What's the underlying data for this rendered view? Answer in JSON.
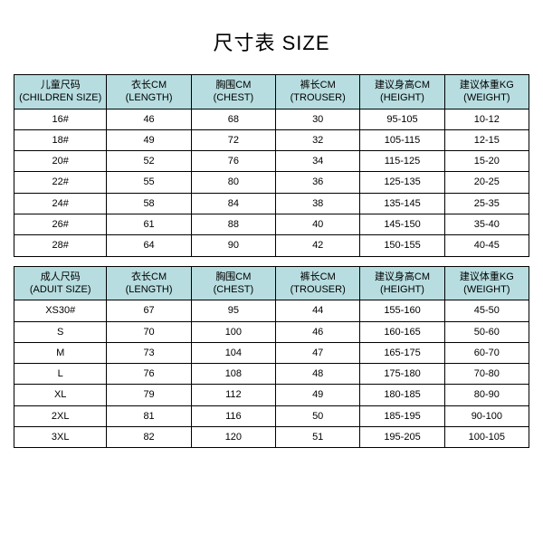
{
  "title": "尺寸表 SIZE",
  "children_table": {
    "headers": [
      "儿童尺码\n(CHILDREN SIZE)",
      "衣长CM\n(LENGTH)",
      "胸围CM\n(CHEST)",
      "裤长CM\n(TROUSER)",
      "建议身高CM\n(HEIGHT)",
      "建议体重KG\n(WEIGHT)"
    ],
    "rows": [
      [
        "16#",
        "46",
        "68",
        "30",
        "95-105",
        "10-12"
      ],
      [
        "18#",
        "49",
        "72",
        "32",
        "105-115",
        "12-15"
      ],
      [
        "20#",
        "52",
        "76",
        "34",
        "115-125",
        "15-20"
      ],
      [
        "22#",
        "55",
        "80",
        "36",
        "125-135",
        "20-25"
      ],
      [
        "24#",
        "58",
        "84",
        "38",
        "135-145",
        "25-35"
      ],
      [
        "26#",
        "61",
        "88",
        "40",
        "145-150",
        "35-40"
      ],
      [
        "28#",
        "64",
        "90",
        "42",
        "150-155",
        "40-45"
      ]
    ]
  },
  "adult_table": {
    "headers": [
      "成人尺码\n(ADUIT SIZE)",
      "衣长CM\n(LENGTH)",
      "胸围CM\n(CHEST)",
      "裤长CM\n(TROUSER)",
      "建议身高CM\n(HEIGHT)",
      "建议体重KG\n(WEIGHT)"
    ],
    "rows": [
      [
        "XS30#",
        "67",
        "95",
        "44",
        "155-160",
        "45-50"
      ],
      [
        "S",
        "70",
        "100",
        "46",
        "160-165",
        "50-60"
      ],
      [
        "M",
        "73",
        "104",
        "47",
        "165-175",
        "60-70"
      ],
      [
        "L",
        "76",
        "108",
        "48",
        "175-180",
        "70-80"
      ],
      [
        "XL",
        "79",
        "112",
        "49",
        "180-185",
        "80-90"
      ],
      [
        "2XL",
        "81",
        "116",
        "50",
        "185-195",
        "90-100"
      ],
      [
        "3XL",
        "82",
        "120",
        "51",
        "195-205",
        "100-105"
      ]
    ]
  },
  "styling": {
    "header_bg": "#b7dde0",
    "border_color": "#000000",
    "page_bg": "#ffffff",
    "title_fontsize": 22,
    "cell_fontsize": 11,
    "col_widths": [
      "18%",
      "16.4%",
      "16.4%",
      "16.4%",
      "16.4%",
      "16.4%"
    ]
  }
}
